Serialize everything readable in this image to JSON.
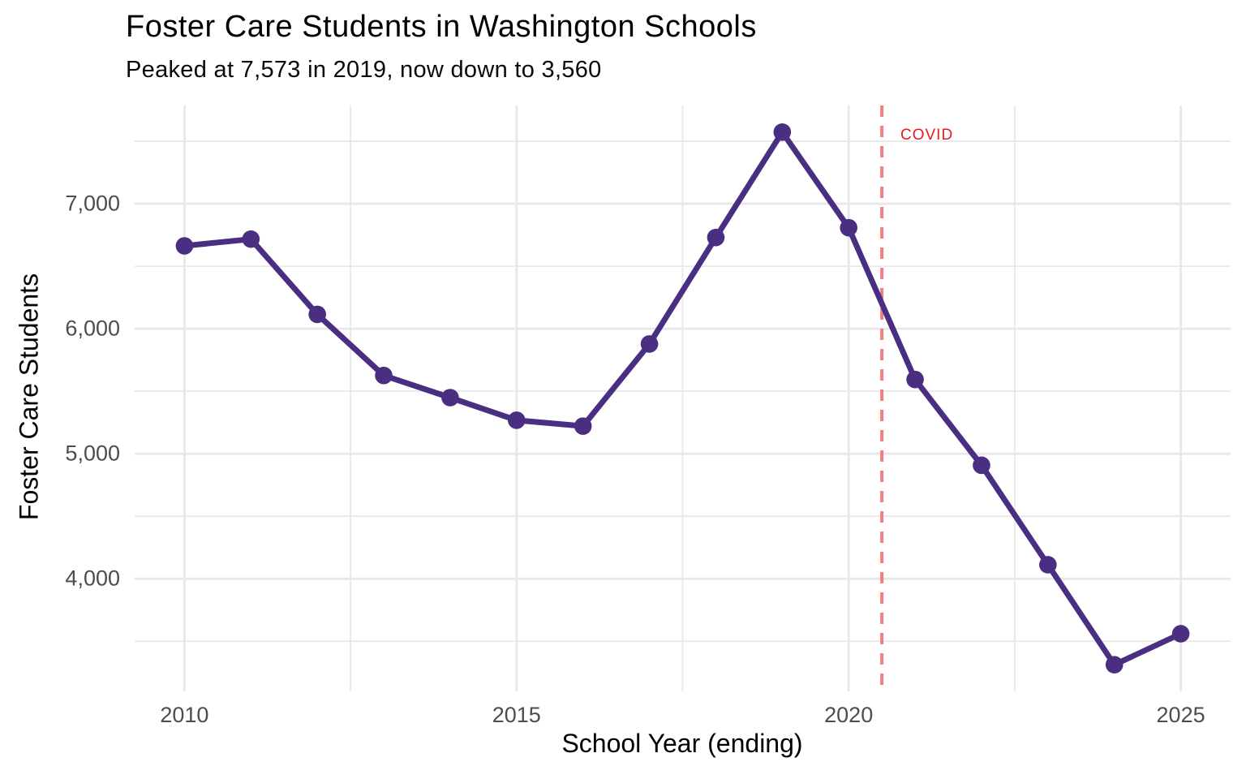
{
  "title": "Foster Care Students in Washington Schools",
  "subtitle": "Peaked at 7,573 in 2019, now down to 3,560",
  "colors": {
    "background": "#ffffff",
    "line": "#4A2E82",
    "grid": "#E8E8E8",
    "tick_label": "#4D4D4D",
    "axis_title": "#000000",
    "title_text": "#000000",
    "covid_line": "#F08080",
    "covid_text": "#E41A1C"
  },
  "chart_data": {
    "type": "line",
    "title": "Foster Care Students in Washington Schools",
    "subtitle": "Peaked at 7,573 in 2019, now down to 3,560",
    "xlabel": "School Year (ending)",
    "ylabel": "Foster Care Students",
    "series": [
      {
        "name": "Foster Care Students",
        "x": [
          2010,
          2011,
          2012,
          2013,
          2014,
          2015,
          2016,
          2017,
          2018,
          2019,
          2020,
          2021,
          2022,
          2023,
          2024,
          2025
        ],
        "values": [
          6663,
          6717,
          6115,
          5626,
          5449,
          5268,
          5221,
          5878,
          6730,
          7573,
          6808,
          5594,
          4908,
          4112,
          3312,
          3560
        ]
      }
    ],
    "xlim": [
      2009.25,
      2025.75
    ],
    "ylim": [
      3099,
      7786
    ],
    "x_ticks": {
      "values": [
        2010,
        2015,
        2020,
        2025
      ],
      "labels": [
        "2010",
        "2015",
        "2020",
        "2025"
      ]
    },
    "y_ticks": {
      "values": [
        4000,
        5000,
        6000,
        7000
      ],
      "labels": [
        "4,000",
        "5,000",
        "6,000",
        "7,000"
      ]
    },
    "x_minor": [
      2012.5,
      2017.5,
      2022.5
    ],
    "y_minor": [
      3500,
      4500,
      5500,
      6500,
      7500
    ],
    "grid": true,
    "legend": "none",
    "annotations": [
      {
        "type": "vline",
        "x": 2020.5,
        "style": "dashed",
        "label": "COVID"
      }
    ]
  }
}
